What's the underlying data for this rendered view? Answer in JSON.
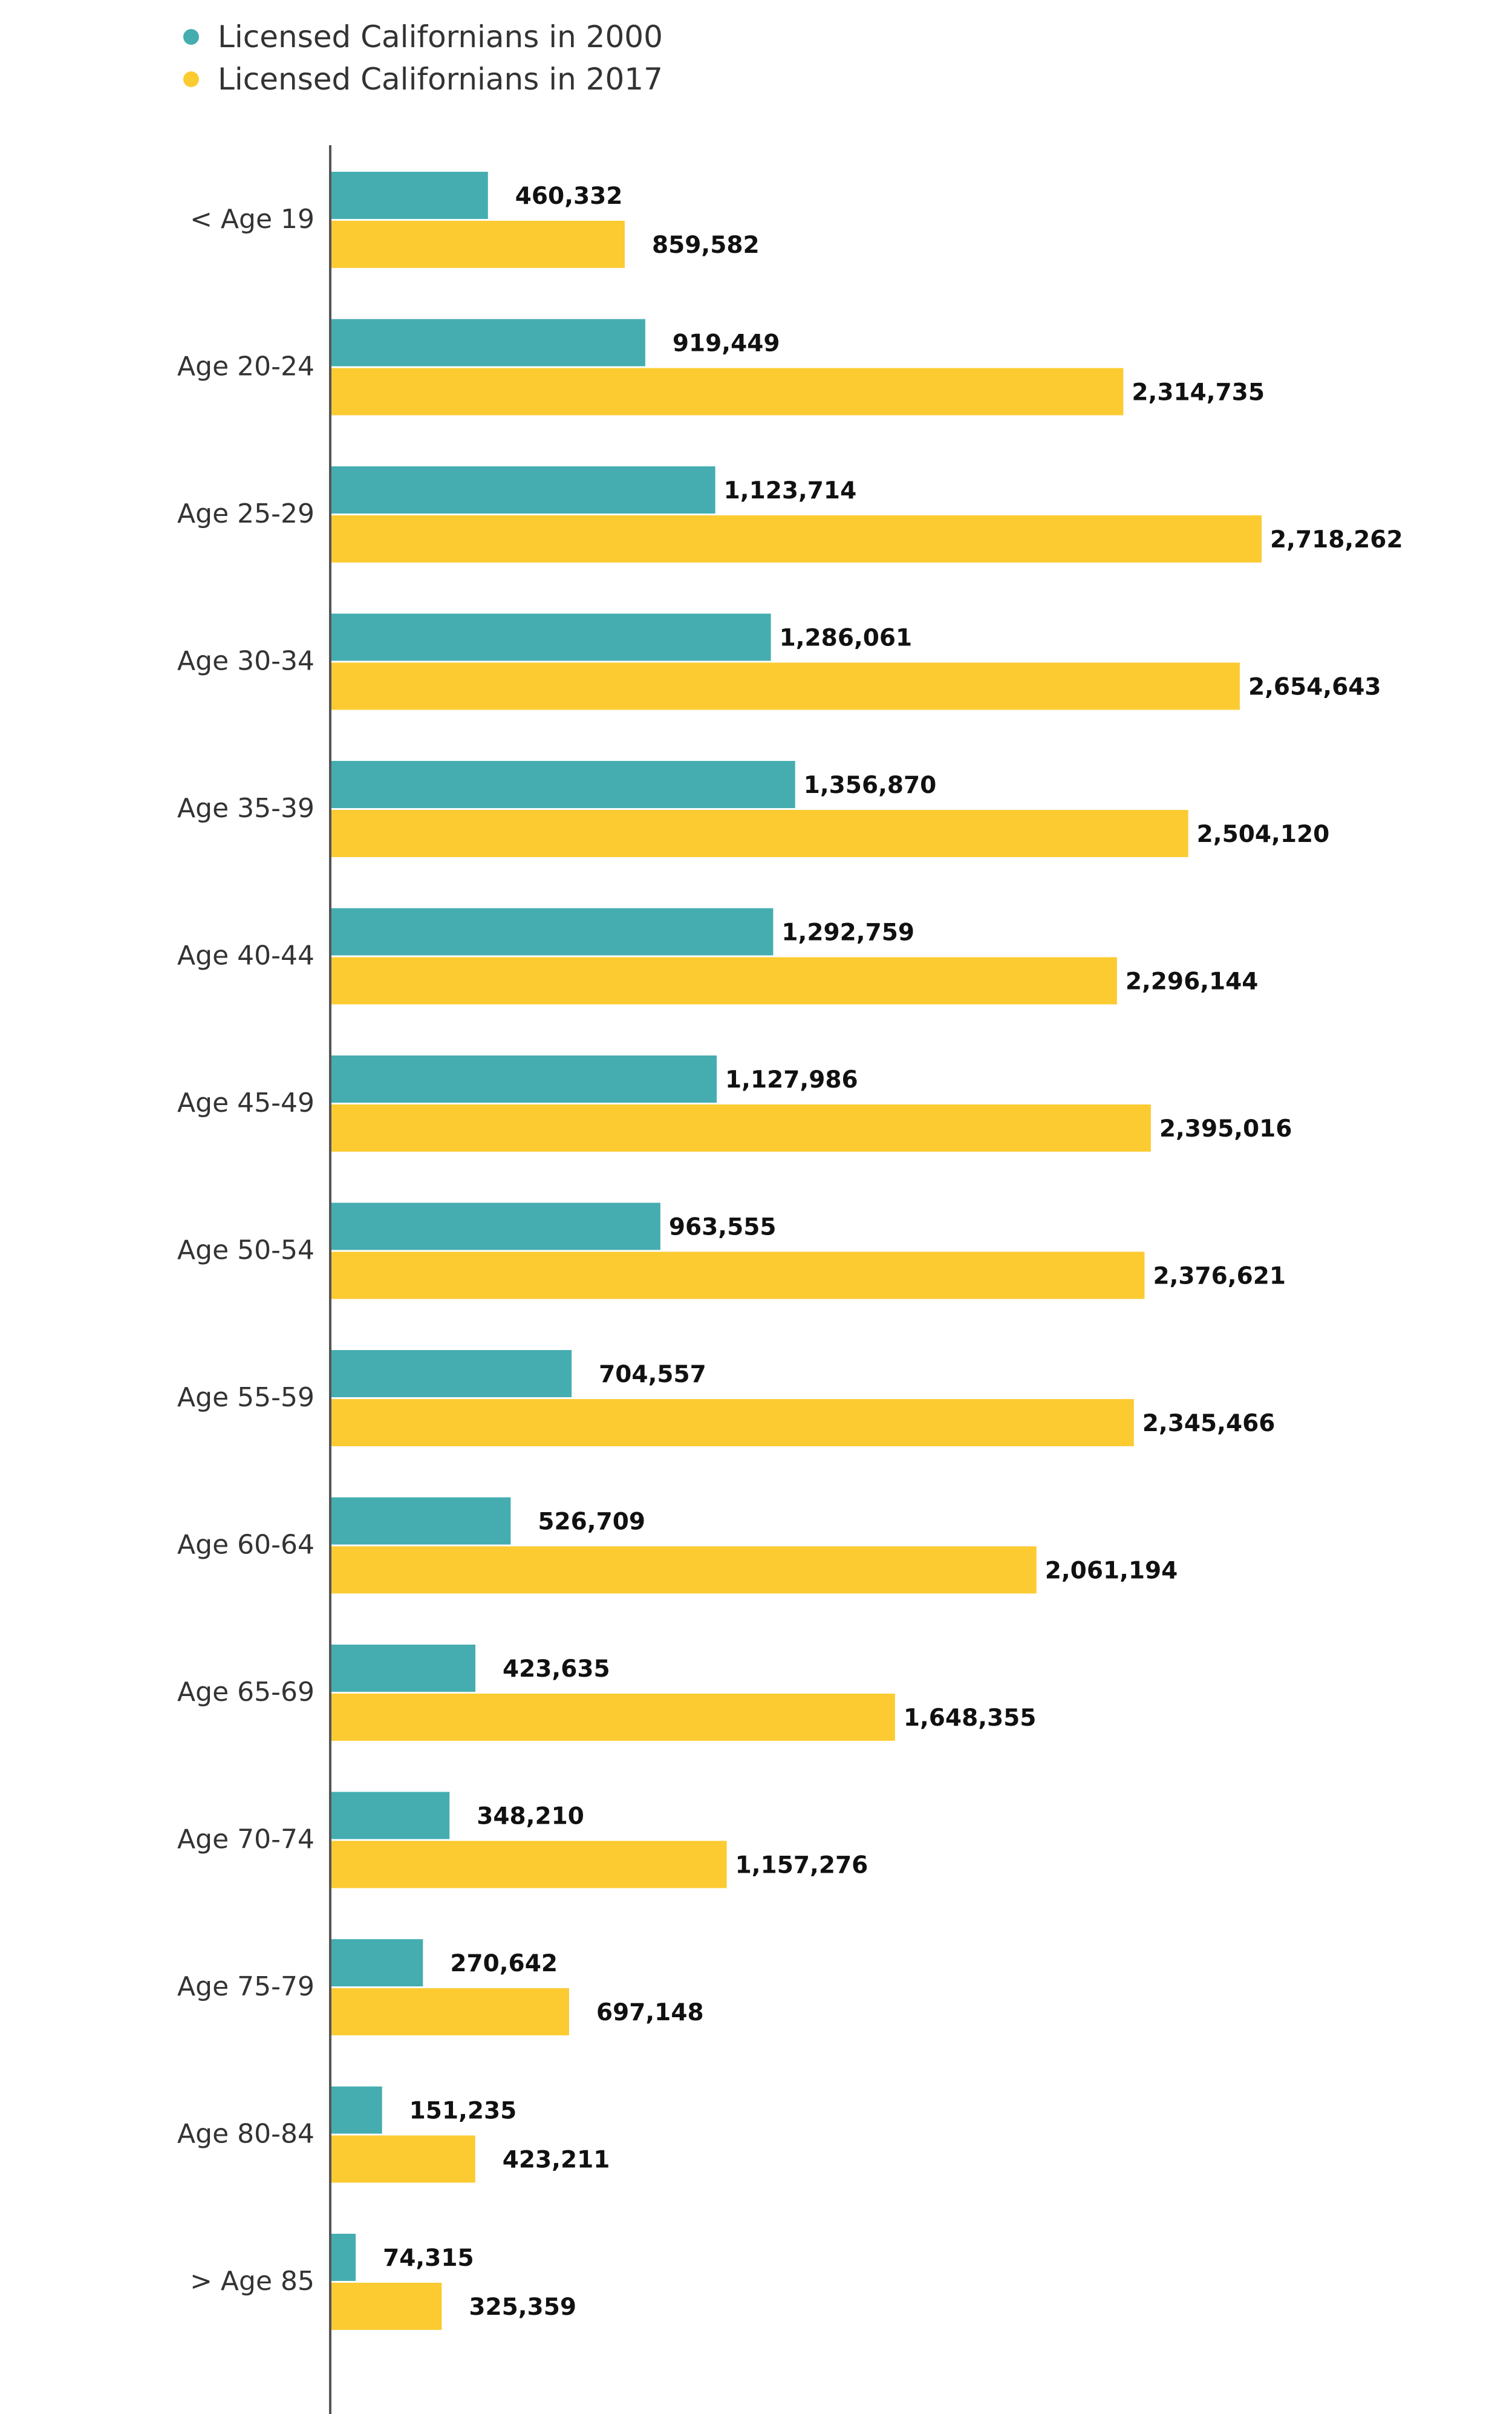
{
  "colors": {
    "series_2000": "#45adb0",
    "series_2017": "#fccb32",
    "axis": "#555555"
  },
  "chart_data": {
    "type": "bar",
    "orientation": "horizontal",
    "categories": [
      "< Age 19",
      "Age 20-24",
      "Age 25-29",
      "Age 30-34",
      "Age 35-39",
      "Age 40-44",
      "Age 45-49",
      "Age 50-54",
      "Age 55-59",
      "Age 60-64",
      "Age 65-69",
      "Age 70-74",
      "Age 75-79",
      "Age 80-84",
      "> Age 85"
    ],
    "series": [
      {
        "name": "Licensed Californians in 2000",
        "values": [
          460332,
          919449,
          1123714,
          1286061,
          1356870,
          1292759,
          1127986,
          963555,
          704557,
          526709,
          423635,
          348210,
          270642,
          151235,
          74315
        ],
        "labels": [
          "460,332",
          "919,449",
          "1,123,714",
          "1,286,061",
          "1,356,870",
          "1,292,759",
          "1,127,986",
          "963,555",
          "704,557",
          "526,709",
          "423,635",
          "348,210",
          "270,642",
          "151,235",
          "74,315"
        ]
      },
      {
        "name": "Licensed Californians in 2017",
        "values": [
          859582,
          2314735,
          2718262,
          2654643,
          2504120,
          2296144,
          2395016,
          2376621,
          2345466,
          2061194,
          1648355,
          1157276,
          697148,
          423211,
          325359
        ],
        "labels": [
          "859,582",
          "2,314,735",
          "2,718,262",
          "2,654,643",
          "2,504,120",
          "2,296,144",
          "2,395,016",
          "2,376,621",
          "2,345,466",
          "2,061,194",
          "1,648,355",
          "1,157,276",
          "697,148",
          "423,211",
          "325,359"
        ]
      }
    ],
    "legend": "top-left",
    "grid": false,
    "title": "",
    "xlabel": "",
    "ylabel": ""
  }
}
